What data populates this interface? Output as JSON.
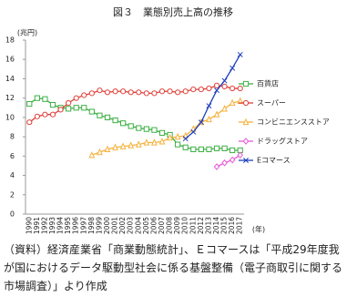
{
  "chart_data": {
    "type": "line",
    "title": "図３　業態別売上高の推移",
    "y_label": "(兆円)",
    "x_label": "(年)",
    "note": "（資料）経済産業省「商業動態統計」、Ｅコマースは「平成29年度我が国におけるデータ駆動型社会に係る基盤整備（電子商取引に関する市場調査）」より作成",
    "categories": [
      "1990",
      "1991",
      "1992",
      "1993",
      "1994",
      "1995",
      "1996",
      "1997",
      "1998",
      "1999",
      "2000",
      "2001",
      "2002",
      "2003",
      "2004",
      "2005",
      "2006",
      "2007",
      "2008",
      "2009",
      "2010",
      "2011",
      "2012",
      "2013",
      "2014",
      "2015",
      "2016",
      "2017"
    ],
    "ylim": [
      0,
      18
    ],
    "yticks": [
      0,
      2,
      4,
      6,
      8,
      10,
      12,
      14,
      16,
      18
    ],
    "legend": "right",
    "series": [
      {
        "name": "百貨店",
        "color": "#3cb043",
        "marker": "square",
        "values": [
          11.4,
          12.0,
          11.9,
          11.3,
          11.0,
          10.9,
          11.0,
          11.0,
          10.6,
          10.2,
          10.0,
          9.7,
          9.4,
          9.1,
          8.9,
          8.8,
          8.7,
          8.4,
          8.2,
          7.2,
          6.9,
          6.7,
          6.7,
          6.7,
          6.8,
          6.8,
          6.6,
          6.6
        ]
      },
      {
        "name": "スーパー",
        "color": "#e0403a",
        "marker": "circle",
        "values": [
          9.5,
          10.1,
          10.3,
          10.3,
          10.8,
          11.5,
          12.0,
          12.3,
          12.5,
          12.8,
          12.6,
          12.7,
          12.7,
          12.6,
          12.6,
          12.5,
          12.5,
          12.7,
          12.7,
          12.6,
          12.7,
          12.9,
          12.9,
          13.0,
          13.3,
          13.2,
          13.0,
          13.0
        ]
      },
      {
        "name": "コンビニエンスストア",
        "color": "#f5b23c",
        "marker": "triangle",
        "values": [
          null,
          null,
          null,
          null,
          null,
          null,
          null,
          null,
          6.1,
          6.4,
          6.7,
          6.9,
          7.0,
          7.1,
          7.2,
          7.4,
          7.4,
          7.5,
          7.9,
          8.0,
          8.1,
          8.8,
          9.5,
          9.8,
          10.3,
          10.9,
          11.5,
          11.7
        ]
      },
      {
        "name": "ドラッグストア",
        "color": "#e85ad6",
        "marker": "diamond",
        "values": [
          null,
          null,
          null,
          null,
          null,
          null,
          null,
          null,
          null,
          null,
          null,
          null,
          null,
          null,
          null,
          null,
          null,
          null,
          null,
          null,
          null,
          null,
          null,
          null,
          4.9,
          5.3,
          5.6,
          6.1
        ]
      },
      {
        "name": "Eコマース",
        "color": "#1f3fbf",
        "marker": "cross",
        "values": [
          null,
          null,
          null,
          null,
          null,
          null,
          null,
          null,
          null,
          null,
          null,
          null,
          null,
          null,
          null,
          null,
          null,
          null,
          null,
          null,
          7.8,
          8.5,
          9.5,
          11.2,
          12.8,
          13.8,
          15.1,
          16.5
        ]
      }
    ]
  }
}
